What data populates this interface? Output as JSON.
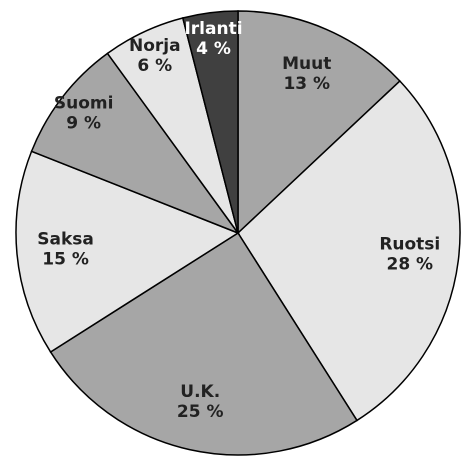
{
  "chart_data": {
    "type": "pie",
    "categories": [
      "Muut",
      "Ruotsi",
      "U.K.",
      "Saksa",
      "Suomi",
      "Norja",
      "Irlanti"
    ],
    "values": [
      13,
      28,
      25,
      15,
      9,
      6,
      4
    ],
    "value_labels": [
      "13 %",
      "28 %",
      "25 %",
      "15 %",
      "9 %",
      "6 %",
      "4 %"
    ],
    "colors": [
      "#a6a6a6",
      "#e6e6e6",
      "#a6a6a6",
      "#e6e6e6",
      "#a6a6a6",
      "#e6e6e6",
      "#404040"
    ]
  }
}
